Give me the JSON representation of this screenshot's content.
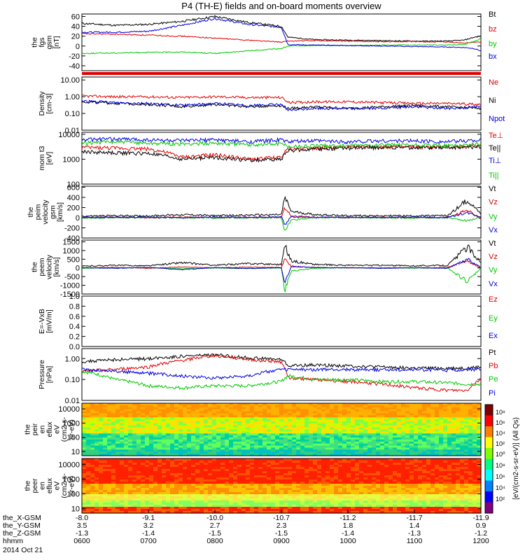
{
  "title": "P4 (TH-E) fields and on-board moments overview",
  "colors": {
    "black": "#000000",
    "red": "#e00000",
    "green": "#00c800",
    "blue": "#0000e0",
    "background": "#ffffff"
  },
  "chart_data": [
    {
      "id": "panel-fgs",
      "type": "line",
      "ylabel": [
        "the",
        "fgs",
        "gsm",
        "[nT]"
      ],
      "ylim": [
        -50,
        65
      ],
      "scale": "linear",
      "yticks": [
        "60",
        "40",
        "20",
        "0",
        "-20",
        "-40"
      ],
      "ytick_values": [
        60,
        40,
        20,
        0,
        -20,
        -40
      ],
      "legend": [
        {
          "label": "Bt",
          "color": "#000000"
        },
        {
          "label": "bz",
          "color": "#e00000"
        },
        {
          "label": "by",
          "color": "#00c800"
        },
        {
          "label": "bx",
          "color": "#0000e0"
        }
      ],
      "x_hours": [
        6.0,
        6.5,
        7.0,
        7.5,
        8.0,
        8.5,
        9.0,
        9.1,
        9.5,
        10.0,
        10.5,
        11.0,
        11.5,
        11.75,
        11.9,
        12.0
      ],
      "series": [
        {
          "name": "Bt",
          "color": "#000000",
          "values": [
            46,
            42,
            44,
            50,
            60,
            48,
            40,
            18,
            13,
            12,
            11,
            10,
            10,
            12,
            18,
            20
          ]
        },
        {
          "name": "bz",
          "color": "#e00000",
          "values": [
            25,
            24,
            22,
            20,
            16,
            12,
            8,
            10,
            11,
            10,
            9,
            9,
            8,
            6,
            8,
            8
          ]
        },
        {
          "name": "by",
          "color": "#00c800",
          "values": [
            -15,
            -14,
            -13,
            -12,
            -15,
            -10,
            -5,
            0,
            1,
            1,
            2,
            2,
            2,
            3,
            10,
            15
          ]
        },
        {
          "name": "bx",
          "color": "#0000e0",
          "values": [
            28,
            28,
            30,
            42,
            56,
            44,
            38,
            3,
            2,
            1,
            0,
            -1,
            -2,
            -3,
            -5,
            -10
          ]
        }
      ]
    },
    {
      "id": "panel-density",
      "type": "line",
      "ylabel": [
        "Density",
        "[cm-3]"
      ],
      "ylim": [
        0.01,
        15
      ],
      "scale": "log",
      "yticks": [
        "10.00",
        "1.00",
        "0.10",
        "0.01"
      ],
      "ytick_values": [
        10,
        1,
        0.1,
        0.01
      ],
      "legend": [
        {
          "label": "Ne",
          "color": "#e00000"
        },
        {
          "label": "Ni",
          "color": "#000000"
        },
        {
          "label": "Npot",
          "color": "#0000e0"
        }
      ],
      "x_hours": [
        6.0,
        6.5,
        7.0,
        7.5,
        8.0,
        8.5,
        9.0,
        9.1,
        9.5,
        10.0,
        10.5,
        11.0,
        11.5,
        12.0
      ],
      "series": [
        {
          "name": "Ne",
          "color": "#e00000",
          "values": [
            1.1,
            1.0,
            1.0,
            0.9,
            1.0,
            0.9,
            0.9,
            0.45,
            0.5,
            0.5,
            0.45,
            0.4,
            0.4,
            0.35
          ]
        },
        {
          "name": "Ni",
          "color": "#000000",
          "values": [
            0.5,
            0.4,
            0.35,
            0.25,
            0.35,
            0.25,
            0.3,
            0.2,
            0.25,
            0.2,
            0.25,
            0.3,
            0.25,
            0.2
          ]
        },
        {
          "name": "Npot",
          "color": "#0000e0",
          "values": [
            0.55,
            0.45,
            0.4,
            0.3,
            0.4,
            0.3,
            0.35,
            0.15,
            0.2,
            0.2,
            0.2,
            0.25,
            0.2,
            0.25
          ]
        }
      ]
    },
    {
      "id": "panel-temperature",
      "type": "line",
      "ylabel": [
        "mom t3",
        "[eV]"
      ],
      "ylim": [
        100,
        12000
      ],
      "scale": "log",
      "yticks": [
        "10000",
        "1000",
        "100"
      ],
      "ytick_values": [
        10000,
        1000,
        100
      ],
      "legend": [
        {
          "label": "Te⊥",
          "color": "#e00000"
        },
        {
          "label": "Te||",
          "color": "#000000"
        },
        {
          "label": "Ti⊥",
          "color": "#0000e0"
        },
        {
          "label": "Ti||",
          "color": "#00c800"
        }
      ],
      "x_hours": [
        6.0,
        6.5,
        7.0,
        7.5,
        8.0,
        8.5,
        9.0,
        9.1,
        9.5,
        10.0,
        10.5,
        11.0,
        11.5,
        12.0
      ],
      "series": [
        {
          "name": "Te⊥",
          "color": "#e00000",
          "values": [
            3000,
            2800,
            2600,
            1200,
            1500,
            1000,
            1200,
            2500,
            2800,
            3000,
            3200,
            3000,
            3000,
            3500
          ]
        },
        {
          "name": "Te||",
          "color": "#000000",
          "values": [
            2000,
            1800,
            1700,
            1000,
            1200,
            900,
            1000,
            2200,
            2600,
            2800,
            3000,
            2900,
            2900,
            3200
          ]
        },
        {
          "name": "Ti⊥",
          "color": "#0000e0",
          "values": [
            6000,
            6500,
            6000,
            5500,
            6000,
            5000,
            6000,
            5000,
            5500,
            5000,
            5500,
            5500,
            5000,
            6000
          ]
        },
        {
          "name": "Ti||",
          "color": "#00c800",
          "values": [
            4500,
            5000,
            4500,
            4000,
            4500,
            3800,
            4200,
            3200,
            3500,
            3500,
            3800,
            3600,
            3500,
            4000
          ]
        }
      ]
    },
    {
      "id": "panel-peim-velocity",
      "type": "line",
      "ylabel": [
        "the",
        "peim",
        "velocity",
        "gsm",
        "[km/s]"
      ],
      "ylim": [
        -400,
        620
      ],
      "scale": "linear",
      "yticks": [
        "600",
        "400",
        "200",
        "0",
        "-200",
        "-400"
      ],
      "ytick_values": [
        600,
        400,
        200,
        0,
        -200,
        -400
      ],
      "legend": [
        {
          "label": "Vt",
          "color": "#000000"
        },
        {
          "label": "Vz",
          "color": "#e00000"
        },
        {
          "label": "Vy",
          "color": "#00c800"
        },
        {
          "label": "Vx",
          "color": "#0000e0"
        }
      ],
      "x_hours": [
        6.0,
        6.5,
        7.0,
        7.5,
        8.0,
        8.5,
        9.0,
        9.05,
        9.15,
        9.5,
        10.0,
        10.5,
        11.0,
        11.5,
        11.8,
        12.0
      ],
      "series": [
        {
          "name": "Vt",
          "color": "#000000",
          "values": [
            30,
            40,
            35,
            60,
            40,
            50,
            60,
            400,
            120,
            60,
            40,
            40,
            35,
            40,
            350,
            80
          ]
        },
        {
          "name": "Vz",
          "color": "#e00000",
          "values": [
            0,
            5,
            0,
            10,
            0,
            5,
            10,
            200,
            30,
            10,
            0,
            5,
            0,
            5,
            150,
            -20
          ]
        },
        {
          "name": "Vy",
          "color": "#00c800",
          "values": [
            -5,
            0,
            5,
            0,
            -5,
            0,
            0,
            -250,
            -40,
            0,
            5,
            0,
            -5,
            0,
            -60,
            10
          ]
        },
        {
          "name": "Vx",
          "color": "#0000e0",
          "values": [
            10,
            5,
            10,
            0,
            10,
            5,
            15,
            -150,
            20,
            5,
            10,
            5,
            10,
            5,
            100,
            20
          ]
        }
      ]
    },
    {
      "id": "panel-peem-velocity",
      "type": "line",
      "ylabel": [
        "the",
        "peem",
        "velocity",
        "[km/s]"
      ],
      "ylim": [
        -1500,
        1600
      ],
      "scale": "linear",
      "yticks": [
        "1500",
        "1000",
        "500",
        "0",
        "-500",
        "-1000",
        "-1500"
      ],
      "ytick_values": [
        1500,
        1000,
        500,
        0,
        -500,
        -1000,
        -1500
      ],
      "legend": [
        {
          "label": "Vt",
          "color": "#000000"
        },
        {
          "label": "Vz",
          "color": "#e00000"
        },
        {
          "label": "Vy",
          "color": "#00c800"
        },
        {
          "label": "Vx",
          "color": "#0000e0"
        }
      ],
      "x_hours": [
        6.0,
        6.5,
        7.0,
        7.5,
        8.0,
        8.5,
        9.0,
        9.05,
        9.15,
        9.5,
        10.0,
        10.5,
        11.0,
        11.5,
        11.8,
        12.0
      ],
      "series": [
        {
          "name": "Vt",
          "color": "#000000",
          "values": [
            100,
            150,
            120,
            300,
            150,
            250,
            200,
            1300,
            400,
            200,
            150,
            150,
            120,
            150,
            1200,
            300
          ]
        },
        {
          "name": "Vz",
          "color": "#e00000",
          "values": [
            0,
            30,
            -20,
            60,
            0,
            50,
            20,
            500,
            80,
            30,
            0,
            20,
            0,
            30,
            400,
            0
          ]
        },
        {
          "name": "Vy",
          "color": "#00c800",
          "values": [
            -20,
            0,
            20,
            -50,
            0,
            -30,
            0,
            -1300,
            -200,
            -20,
            10,
            0,
            -10,
            0,
            -800,
            0
          ]
        },
        {
          "name": "Vx",
          "color": "#0000e0",
          "values": [
            20,
            -20,
            30,
            -100,
            20,
            -40,
            20,
            -900,
            100,
            20,
            10,
            -20,
            10,
            -20,
            500,
            20
          ]
        }
      ]
    },
    {
      "id": "panel-exb",
      "type": "line",
      "ylabel": [
        "E=-VxB",
        "[mV/m]"
      ],
      "ylim": [
        0,
        1
      ],
      "scale": "linear",
      "yticks": [
        "1.0",
        "0.8",
        "0.6",
        "0.4",
        "0.2",
        "0.0"
      ],
      "ytick_values": [
        1.0,
        0.8,
        0.6,
        0.4,
        0.2,
        0.0
      ],
      "legend": [
        {
          "label": "Ez",
          "color": "#e00000"
        },
        {
          "label": "Ey",
          "color": "#00c800"
        },
        {
          "label": "Ex",
          "color": "#0000e0"
        }
      ],
      "series": []
    },
    {
      "id": "panel-pressure",
      "type": "line",
      "ylabel": [
        "Pressure",
        "[nPa]"
      ],
      "ylim": [
        0.01,
        3
      ],
      "scale": "log",
      "yticks": [
        "1.00",
        "0.10",
        "0.01"
      ],
      "ytick_values": [
        1,
        0.1,
        0.01
      ],
      "legend": [
        {
          "label": "Pt",
          "color": "#000000"
        },
        {
          "label": "Pb",
          "color": "#e00000"
        },
        {
          "label": "Pe",
          "color": "#00c800"
        },
        {
          "label": "Pi",
          "color": "#0000e0"
        }
      ],
      "x_hours": [
        6.0,
        6.5,
        7.0,
        7.5,
        8.0,
        8.5,
        9.0,
        9.1,
        9.5,
        10.0,
        10.5,
        11.0,
        11.5,
        11.8,
        12.0
      ],
      "series": [
        {
          "name": "Pt",
          "color": "#000000",
          "values": [
            0.7,
            0.9,
            1.0,
            1.3,
            1.5,
            1.1,
            0.9,
            0.45,
            0.5,
            0.45,
            0.4,
            0.35,
            0.35,
            0.35,
            0.4
          ]
        },
        {
          "name": "Pb",
          "color": "#e00000",
          "values": [
            0.25,
            0.3,
            0.4,
            0.8,
            1.4,
            0.9,
            0.7,
            0.12,
            0.1,
            0.08,
            0.06,
            0.04,
            0.03,
            0.03,
            0.1
          ]
        },
        {
          "name": "Pe",
          "color": "#00c800",
          "values": [
            0.25,
            0.1,
            0.05,
            0.04,
            0.05,
            0.05,
            0.08,
            0.15,
            0.1,
            0.1,
            0.08,
            0.08,
            0.07,
            0.06,
            0.06
          ]
        },
        {
          "name": "Pi",
          "color": "#0000e0",
          "values": [
            0.3,
            0.25,
            0.2,
            0.15,
            0.12,
            0.15,
            0.3,
            0.3,
            0.3,
            0.3,
            0.3,
            0.3,
            0.28,
            0.3,
            0.3
          ]
        }
      ]
    },
    {
      "id": "panel-peir-spec",
      "type": "heatmap",
      "ylabel": [
        "the",
        "peir",
        "en",
        "eflux",
        "eV",
        "(cm2-s-",
        "sr-eV)"
      ],
      "ylim": [
        5,
        25000
      ],
      "scale": "log",
      "yticks": [
        "10000",
        "1000",
        "100",
        "10"
      ],
      "ytick_values": [
        10000,
        1000,
        100,
        10
      ]
    },
    {
      "id": "panel-peer-spec",
      "type": "heatmap",
      "ylabel": [
        "the",
        "peer",
        "en",
        "eflux",
        "eV",
        "(cm2-s-",
        "sr-eV)"
      ],
      "ylim": [
        5,
        25000
      ],
      "scale": "log",
      "yticks": [
        "10000",
        "1000",
        "100",
        "10"
      ],
      "ytick_values": [
        10000,
        1000,
        100,
        10
      ]
    }
  ],
  "colorbar": {
    "label": "[eV/(cm2-s-sr-eV)]  (All Qs)",
    "ticks_top": [
      "10⁸",
      "10⁶",
      "10⁴",
      "10²",
      "10⁰"
    ],
    "ticks_bottom": [
      "10⁸",
      "10⁶",
      "10⁴",
      "10²"
    ]
  },
  "xaxis": {
    "row_labels": [
      "the_X-GSM",
      "the_Y-GSM",
      "the_Z-GSM",
      "hhmm",
      "2014 Oct 21"
    ],
    "ticks": [
      {
        "x": "-8.0",
        "y": "3.5",
        "z": "-1.3",
        "t": "0600"
      },
      {
        "x": "-9.1",
        "y": "3.2",
        "z": "-1.4",
        "t": "0700"
      },
      {
        "x": "-10.0",
        "y": "2.7",
        "z": "-1.5",
        "t": "0800"
      },
      {
        "x": "-10.7",
        "y": "2.3",
        "z": "-1.5",
        "t": "0900"
      },
      {
        "x": "-11.2",
        "y": "1.8",
        "z": "-1.4",
        "t": "1000"
      },
      {
        "x": "-11.7",
        "y": "1.4",
        "z": "-1.3",
        "t": "1100"
      },
      {
        "x": "-11.9",
        "y": "0.9",
        "z": "-1.2",
        "t": "1200"
      }
    ],
    "x_range_hours": [
      6,
      12
    ]
  }
}
